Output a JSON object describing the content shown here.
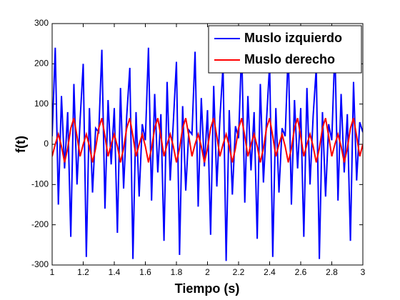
{
  "chart_data": {
    "type": "line",
    "xlabel": "Tiempo (s)",
    "ylabel": "f(t)",
    "x": [
      1,
      1.02,
      1.04,
      1.06,
      1.08,
      1.1,
      1.12,
      1.14,
      1.16,
      1.18,
      1.2,
      1.22,
      1.24,
      1.26,
      1.28,
      1.3,
      1.32,
      1.34,
      1.36,
      1.38,
      1.4,
      1.42,
      1.44,
      1.46,
      1.48,
      1.5,
      1.52,
      1.54,
      1.56,
      1.58,
      1.6,
      1.62,
      1.64,
      1.66,
      1.68,
      1.7,
      1.72,
      1.74,
      1.76,
      1.78,
      1.8,
      1.82,
      1.84,
      1.86,
      1.88,
      1.9,
      1.92,
      1.94,
      1.96,
      1.98,
      2,
      2.02,
      2.04,
      2.06,
      2.08,
      2.1,
      2.12,
      2.14,
      2.16,
      2.18,
      2.2,
      2.22,
      2.24,
      2.26,
      2.28,
      2.3,
      2.32,
      2.34,
      2.36,
      2.38,
      2.4,
      2.42,
      2.44,
      2.46,
      2.48,
      2.5,
      2.52,
      2.54,
      2.56,
      2.58,
      2.6,
      2.62,
      2.64,
      2.66,
      2.68,
      2.7,
      2.72,
      2.74,
      2.76,
      2.78,
      2.8,
      2.82,
      2.84,
      2.86,
      2.88,
      2.9,
      2.92,
      2.94,
      2.96,
      2.98,
      3
    ],
    "series": [
      {
        "name": "Muslo izquierdo",
        "color": "#0000ff",
        "values": [
          20,
          240,
          -150,
          120,
          -60,
          80,
          -230,
          150,
          -100,
          60,
          200,
          -280,
          90,
          -120,
          40,
          30,
          235,
          -160,
          110,
          -50,
          90,
          -220,
          140,
          -110,
          70,
          190,
          -285,
          80,
          -130,
          50,
          10,
          240,
          -140,
          125,
          -70,
          75,
          -240,
          155,
          -90,
          55,
          205,
          -275,
          95,
          -115,
          35,
          25,
          230,
          -155,
          115,
          -55,
          85,
          -225,
          145,
          -105,
          65,
          195,
          -290,
          85,
          -125,
          45,
          15,
          240,
          -145,
          120,
          -65,
          80,
          -235,
          150,
          -95,
          60,
          200,
          -280,
          90,
          -120,
          40,
          20,
          235,
          -150,
          110,
          -60,
          90,
          -230,
          140,
          -100,
          70,
          190,
          -285,
          80,
          -130,
          50,
          10,
          240,
          -140,
          125,
          -70,
          75,
          -240,
          155,
          -90,
          55,
          30
        ]
      },
      {
        "name": "Muslo derecho",
        "color": "#ff0000",
        "values": [
          -30,
          0,
          25,
          -5,
          -45,
          -10,
          40,
          65,
          20,
          -30,
          0,
          25,
          -5,
          -45,
          -10,
          40,
          65,
          20,
          -30,
          0,
          25,
          -5,
          -45,
          -10,
          40,
          65,
          20,
          -30,
          0,
          25,
          -5,
          -45,
          -10,
          40,
          65,
          20,
          -30,
          0,
          25,
          -5,
          -45,
          -10,
          40,
          65,
          20,
          -30,
          0,
          25,
          -5,
          -45,
          -10,
          40,
          65,
          20,
          -30,
          0,
          25,
          -5,
          -45,
          -10,
          40,
          65,
          20,
          -30,
          0,
          25,
          -5,
          -45,
          -10,
          40,
          65,
          20,
          -30,
          0,
          25,
          -5,
          -45,
          -10,
          40,
          65,
          20,
          -30,
          0,
          25,
          -5,
          -45,
          -10,
          40,
          65,
          20,
          -30,
          0,
          25,
          -5,
          -45,
          -10,
          40,
          65,
          20,
          -30,
          0
        ]
      }
    ],
    "xlim": [
      1,
      3
    ],
    "xticks": [
      1,
      1.2,
      1.4,
      1.6,
      1.8,
      2,
      2.2,
      2.4,
      2.6,
      2.8,
      3
    ],
    "ylim": [
      -300,
      300
    ],
    "yticks": [
      -300,
      -200,
      -100,
      0,
      100,
      200,
      300
    ],
    "legend": "upper right",
    "grid": false
  }
}
